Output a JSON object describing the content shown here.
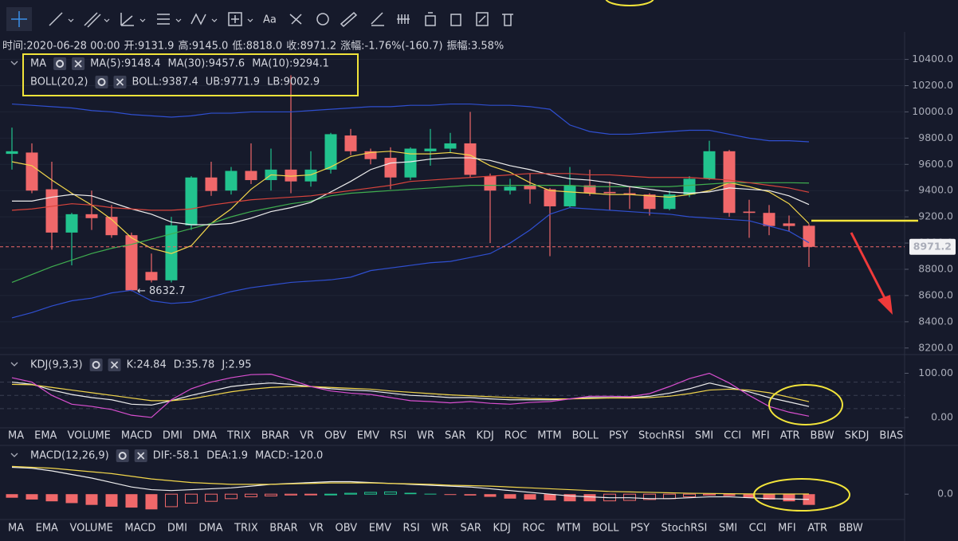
{
  "toolbar": {
    "text_tool": "Aa"
  },
  "info_bar": [
    {
      "label": "时间:",
      "value": "2020-06-28 00:00",
      "value_color": "#e4e6ec"
    },
    {
      "label": "开:",
      "value": "9131.9",
      "value_color": "#f0686a"
    },
    {
      "label": "高:",
      "value": "9145.0",
      "value_color": "#f0686a"
    },
    {
      "label": "低:",
      "value": "8818.0",
      "value_color": "#f0686a"
    },
    {
      "label": "收:",
      "value": "8971.2",
      "value_color": "#f0686a"
    },
    {
      "label": "涨幅:",
      "value": "-1.76%(-160.7)",
      "value_color": "#f0686a"
    },
    {
      "label": "振幅:",
      "value": "3.58%",
      "value_color": "#f0686a"
    }
  ],
  "chart_data": [
    {
      "type": "candlestick",
      "ma_title": "MA",
      "boll_title": "BOLL(20,2)",
      "up_color": "#22c38e",
      "down_color": "#f0686a",
      "open": [
        9680,
        9690,
        9410,
        9080,
        9220,
        9200,
        9060,
        8780,
        8716,
        9135,
        9500,
        9400,
        9550,
        9480,
        9560,
        9470,
        9560,
        9820,
        9700,
        9650,
        9500,
        9700,
        9720,
        9760,
        9510,
        9400,
        9440,
        9410,
        9280,
        9440,
        9390,
        9380,
        9370,
        9260,
        9370,
        9490,
        9700,
        9240,
        9230,
        9150,
        9131.9
      ],
      "high": [
        9880,
        9760,
        9620,
        9230,
        9400,
        9290,
        9080,
        8920,
        9200,
        9510,
        9620,
        9580,
        9760,
        9720,
        10280,
        9700,
        9840,
        9870,
        9720,
        9730,
        9730,
        9870,
        9840,
        10000,
        9530,
        9490,
        9530,
        9420,
        9580,
        9560,
        9470,
        9430,
        9380,
        9400,
        9510,
        9780,
        9710,
        9330,
        9290,
        9210,
        9145
      ],
      "low": [
        9560,
        9380,
        8950,
        8830,
        9100,
        9040,
        8632.7,
        8700,
        8700,
        9100,
        9360,
        9370,
        9450,
        9400,
        9380,
        9430,
        9530,
        9670,
        9600,
        9410,
        9480,
        9590,
        9690,
        9500,
        9000,
        9370,
        9300,
        8900,
        9270,
        9360,
        9250,
        9260,
        9210,
        9250,
        9350,
        9480,
        9200,
        9040,
        9060,
        9090,
        8818
      ],
      "close": [
        9700,
        9400,
        9080,
        9220,
        9190,
        9060,
        8640,
        8716,
        9135,
        9500,
        9397,
        9550,
        9480,
        9560,
        9470,
        9560,
        9830,
        9700,
        9640,
        9500,
        9720,
        9720,
        9760,
        9520,
        9400,
        9430,
        9410,
        9280,
        9440,
        9380,
        9380,
        9370,
        9260,
        9370,
        9490,
        9700,
        9230,
        9230,
        9130,
        9130,
        8971.2
      ],
      "series": [
        {
          "name": "MA(5):9148.4",
          "color": "#f2d64b",
          "values": [
            9620,
            9590,
            9480,
            9380,
            9290,
            9180,
            9040,
            8960,
            8920,
            8980,
            9150,
            9260,
            9410,
            9520,
            9510,
            9520,
            9580,
            9660,
            9690,
            9700,
            9680,
            9680,
            9690,
            9670,
            9590,
            9540,
            9460,
            9400,
            9390,
            9380,
            9370,
            9370,
            9360,
            9350,
            9370,
            9400,
            9460,
            9430,
            9390,
            9300,
            9148.4
          ]
        },
        {
          "name": "MA(30):9457.6",
          "color": "#3fae4f",
          "values": [
            8700,
            8760,
            8820,
            8870,
            8920,
            8960,
            8990,
            9030,
            9070,
            9110,
            9150,
            9200,
            9240,
            9270,
            9300,
            9320,
            9360,
            9380,
            9390,
            9400,
            9410,
            9420,
            9430,
            9440,
            9440,
            9440,
            9440,
            9440,
            9440,
            9430,
            9430,
            9430,
            9430,
            9430,
            9440,
            9450,
            9460,
            9460,
            9460,
            9460,
            9457.6
          ]
        },
        {
          "name": "MA(10):9294.1",
          "color": "#eeeeee",
          "values": [
            9320,
            9320,
            9350,
            9370,
            9360,
            9310,
            9260,
            9220,
            9160,
            9140,
            9140,
            9150,
            9190,
            9240,
            9270,
            9310,
            9390,
            9470,
            9560,
            9610,
            9620,
            9640,
            9650,
            9650,
            9630,
            9590,
            9560,
            9520,
            9490,
            9480,
            9460,
            9430,
            9410,
            9390,
            9380,
            9390,
            9420,
            9410,
            9400,
            9360,
            9294.1
          ]
        },
        {
          "name": "BOLL:9387.4",
          "color": "#d9443c",
          "values": [
            9250,
            9260,
            9280,
            9300,
            9290,
            9270,
            9260,
            9250,
            9250,
            9260,
            9290,
            9310,
            9330,
            9340,
            9350,
            9360,
            9380,
            9400,
            9420,
            9440,
            9470,
            9480,
            9490,
            9500,
            9510,
            9520,
            9530,
            9530,
            9530,
            9520,
            9520,
            9510,
            9500,
            9500,
            9500,
            9490,
            9480,
            9460,
            9440,
            9420,
            9387.4
          ]
        },
        {
          "name": "UB:9771.9",
          "color": "#2f4fd0",
          "values": [
            10060,
            10050,
            10040,
            10030,
            10010,
            10000,
            9980,
            9970,
            9960,
            9970,
            9990,
            9990,
            10000,
            10000,
            10000,
            10010,
            10020,
            10030,
            10040,
            10040,
            10050,
            10050,
            10060,
            10060,
            10050,
            10050,
            10040,
            10020,
            9900,
            9850,
            9830,
            9830,
            9840,
            9850,
            9860,
            9860,
            9830,
            9800,
            9780,
            9780,
            9771.9
          ]
        },
        {
          "name": "LB:9002.9",
          "color": "#2f4fd0",
          "values": [
            8430,
            8470,
            8520,
            8560,
            8580,
            8620,
            8640,
            8560,
            8540,
            8550,
            8590,
            8630,
            8660,
            8680,
            8700,
            8710,
            8720,
            8740,
            8790,
            8810,
            8830,
            8850,
            8860,
            8890,
            8920,
            9000,
            9100,
            9220,
            9270,
            9260,
            9250,
            9240,
            9230,
            9220,
            9200,
            9190,
            9180,
            9170,
            9130,
            9090,
            9002.9
          ]
        }
      ],
      "annotation": {
        "index": 6,
        "value": 8632.7,
        "label": "← 8632.7"
      },
      "last_price": {
        "value": 8971.2,
        "label": "8971.2"
      },
      "ylim": [
        8150,
        10610
      ],
      "yticks": [
        {
          "value": 8200,
          "label": "8200.0"
        },
        {
          "value": 8400,
          "label": "8400.0"
        },
        {
          "value": 8600,
          "label": "8600.0"
        },
        {
          "value": 8800,
          "label": "8800.0"
        },
        {
          "value": 9000,
          "label": "9000.0"
        },
        {
          "value": 9200,
          "label": "9200.0"
        },
        {
          "value": 9400,
          "label": "9400.0"
        },
        {
          "value": 9600,
          "label": "9600.0"
        },
        {
          "value": 9800,
          "label": "9800.0"
        },
        {
          "value": 10000,
          "label": "10000.0"
        },
        {
          "value": 10200,
          "label": "10200.0"
        },
        {
          "value": 10400,
          "label": "10400.0"
        }
      ],
      "grid": true
    },
    {
      "type": "line",
      "title": "KDJ(9,3,3)",
      "series": [
        {
          "name": "K:24.84",
          "color": "#eeeeee",
          "values": [
            80,
            75,
            62,
            52,
            45,
            40,
            30,
            28,
            38,
            50,
            60,
            70,
            75,
            78,
            75,
            70,
            65,
            62,
            60,
            55,
            50,
            48,
            45,
            45,
            42,
            40,
            40,
            40,
            42,
            45,
            45,
            45,
            48,
            55,
            65,
            78,
            68,
            58,
            45,
            35,
            24.84
          ]
        },
        {
          "name": "D:35.78",
          "color": "#f2d64b",
          "values": [
            75,
            74,
            68,
            62,
            56,
            50,
            44,
            38,
            38,
            42,
            50,
            58,
            64,
            68,
            70,
            70,
            68,
            66,
            64,
            60,
            57,
            54,
            51,
            49,
            47,
            45,
            43,
            42,
            42,
            43,
            44,
            44,
            45,
            48,
            54,
            62,
            64,
            62,
            56,
            46,
            35.78
          ]
        },
        {
          "name": "J:2.95",
          "color": "#d94fd0",
          "values": [
            90,
            80,
            50,
            30,
            25,
            18,
            5,
            0,
            40,
            65,
            80,
            90,
            97,
            98,
            85,
            70,
            60,
            55,
            52,
            45,
            38,
            36,
            33,
            36,
            32,
            30,
            34,
            36,
            42,
            48,
            48,
            47,
            54,
            70,
            88,
            100,
            78,
            50,
            25,
            12,
            2.95
          ]
        }
      ],
      "reference_lines": [
        20,
        50,
        80
      ],
      "ylim": [
        -20,
        137
      ],
      "yticks": [
        {
          "value": 0,
          "label": "0.00"
        },
        {
          "value": 100,
          "label": "100.00"
        }
      ]
    },
    {
      "type": "bar",
      "title": "MACD(12,26,9)",
      "name": "MACD:-120.0",
      "up_color": "#22c38e",
      "down_color": "#f0686a",
      "values": [
        -40,
        -60,
        -80,
        -100,
        -120,
        -140,
        -150,
        -170,
        -140,
        -100,
        -80,
        -50,
        -30,
        -20,
        -10,
        -5,
        0,
        10,
        20,
        25,
        15,
        5,
        -5,
        -15,
        -30,
        -50,
        -60,
        -70,
        -80,
        -80,
        -75,
        -70,
        -60,
        -50,
        -30,
        -10,
        -20,
        -40,
        -60,
        -80,
        -120
      ],
      "series": [
        {
          "name": "DIF:-58.1",
          "color": "#eeeeee",
          "values": [
            300,
            290,
            260,
            220,
            180,
            130,
            80,
            50,
            40,
            50,
            60,
            70,
            90,
            110,
            120,
            130,
            140,
            140,
            130,
            120,
            110,
            100,
            90,
            80,
            60,
            40,
            20,
            0,
            -20,
            -30,
            -40,
            -40,
            -50,
            -50,
            -40,
            -30,
            -30,
            -40,
            -50,
            -55,
            -58.1
          ]
        },
        {
          "name": "DEA:1.9",
          "color": "#f2d64b",
          "values": [
            310,
            300,
            290,
            270,
            250,
            230,
            200,
            170,
            150,
            130,
            120,
            110,
            110,
            110,
            115,
            120,
            125,
            125,
            125,
            120,
            115,
            110,
            100,
            95,
            90,
            80,
            70,
            60,
            50,
            40,
            30,
            25,
            20,
            15,
            10,
            8,
            5,
            3,
            2,
            2,
            1.9
          ]
        }
      ],
      "ylim": [
        -283,
        340
      ],
      "yticks": [
        {
          "value": 0,
          "label": "0.0"
        }
      ]
    }
  ],
  "indicator_tabs": [
    {
      "items": [
        "MA",
        "EMA",
        "VOLUME",
        "MACD",
        "DMI",
        "DMA",
        "TRIX",
        "BRAR",
        "VR",
        "OBV",
        "EMV",
        "RSI",
        "WR",
        "SAR",
        "KDJ",
        "ROC",
        "MTM",
        "BOLL",
        "PSY",
        "StochRSI",
        "SMI",
        "CCI",
        "MFI",
        "ATR",
        "BBW",
        "SKDJ",
        "BIAS"
      ],
      "active": 14,
      "dimmed": 3
    },
    {
      "items": [
        "MA",
        "EMA",
        "VOLUME",
        "MACD",
        "DMI",
        "DMA",
        "TRIX",
        "BRAR",
        "VR",
        "OBV",
        "EMV",
        "RSI",
        "WR",
        "SAR",
        "KDJ",
        "ROC",
        "MTM",
        "BOLL",
        "PSY",
        "StochRSI",
        "SMI",
        "CCI",
        "MFI",
        "ATR",
        "BBW"
      ],
      "active": 3,
      "dimmed": 14
    }
  ]
}
